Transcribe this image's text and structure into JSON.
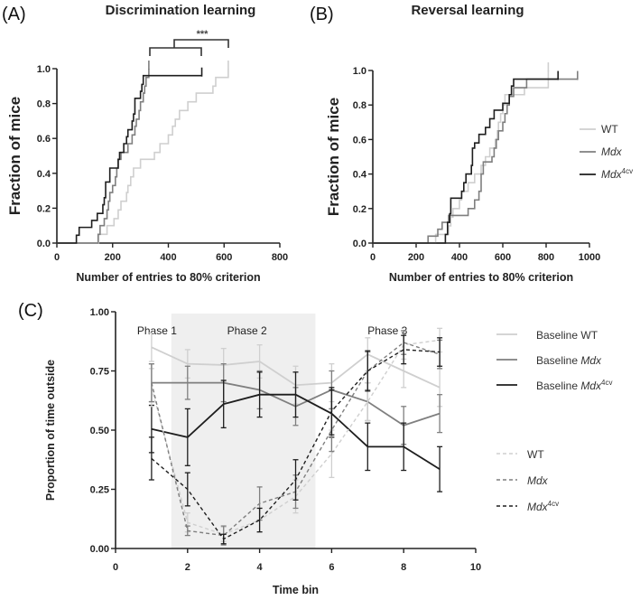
{
  "colors": {
    "WT": "#cfcfcf",
    "Mdx": "#7f7f7f",
    "Mdx4cv": "#1e1e1e",
    "shade": "#efefef"
  },
  "chart_data": [
    {
      "id": "A",
      "panel_label": "(A)",
      "type": "line",
      "title": "Discrimination learning",
      "xlabel": "Number of entries to 80% criterion",
      "ylabel": "Fraction of mice",
      "xlim": [
        0,
        800
      ],
      "ylim": [
        0,
        1
      ],
      "xticks": [
        0,
        200,
        400,
        600,
        800
      ],
      "yticks": [
        "0.0",
        "0.2",
        "0.4",
        "0.6",
        "0.8",
        "1.0"
      ],
      "significance": "***",
      "series": [
        {
          "name": "WT",
          "color_key": "WT",
          "end": 615,
          "steps": [
            [
              150,
              0.05
            ],
            [
              180,
              0.1
            ],
            [
              205,
              0.14
            ],
            [
              220,
              0.19
            ],
            [
              230,
              0.24
            ],
            [
              250,
              0.29
            ],
            [
              255,
              0.33
            ],
            [
              265,
              0.38
            ],
            [
              275,
              0.43
            ],
            [
              300,
              0.48
            ],
            [
              350,
              0.52
            ],
            [
              370,
              0.57
            ],
            [
              400,
              0.62
            ],
            [
              415,
              0.67
            ],
            [
              425,
              0.71
            ],
            [
              440,
              0.76
            ],
            [
              470,
              0.81
            ],
            [
              500,
              0.86
            ],
            [
              560,
              0.9
            ],
            [
              570,
              0.95
            ],
            [
              615,
              1.0
            ]
          ]
        },
        {
          "name": "Mdx",
          "color_key": "Mdx",
          "end": 330,
          "steps": [
            [
              148,
              0.05
            ],
            [
              155,
              0.1
            ],
            [
              170,
              0.14
            ],
            [
              180,
              0.19
            ],
            [
              185,
              0.24
            ],
            [
              190,
              0.29
            ],
            [
              200,
              0.33
            ],
            [
              210,
              0.38
            ],
            [
              215,
              0.43
            ],
            [
              220,
              0.48
            ],
            [
              230,
              0.52
            ],
            [
              255,
              0.57
            ],
            [
              270,
              0.62
            ],
            [
              280,
              0.67
            ],
            [
              285,
              0.71
            ],
            [
              295,
              0.76
            ],
            [
              300,
              0.81
            ],
            [
              310,
              0.86
            ],
            [
              315,
              0.9
            ],
            [
              320,
              0.95
            ],
            [
              330,
              1.0
            ]
          ]
        },
        {
          "name": "Mdx4cv",
          "color_key": "Mdx4cv",
          "end": 520,
          "steps": [
            [
              70,
              0.045
            ],
            [
              80,
              0.09
            ],
            [
              125,
              0.13
            ],
            [
              145,
              0.17
            ],
            [
              165,
              0.22
            ],
            [
              170,
              0.26
            ],
            [
              175,
              0.35
            ],
            [
              190,
              0.43
            ],
            [
              220,
              0.48
            ],
            [
              225,
              0.52
            ],
            [
              240,
              0.57
            ],
            [
              250,
              0.61
            ],
            [
              255,
              0.65
            ],
            [
              270,
              0.7
            ],
            [
              275,
              0.74
            ],
            [
              280,
              0.83
            ],
            [
              300,
              0.87
            ],
            [
              305,
              0.91
            ],
            [
              310,
              0.96
            ]
          ]
        }
      ]
    },
    {
      "id": "B",
      "panel_label": "(B)",
      "type": "line",
      "title": "Reversal learning",
      "xlabel": "Number of entries to 80% criterion",
      "ylabel": "Fraction of mice",
      "xlim": [
        0,
        1000
      ],
      "ylim": [
        0,
        1
      ],
      "xticks": [
        0,
        200,
        400,
        600,
        800,
        1000
      ],
      "yticks": [
        "0.0",
        "0.2",
        "0.4",
        "0.6",
        "0.8",
        "1.0"
      ],
      "legend": [
        {
          "text": "WT",
          "italic": "",
          "sup": "",
          "color_key": "WT"
        },
        {
          "text": "",
          "italic": "Mdx",
          "sup": "",
          "color_key": "Mdx"
        },
        {
          "text": "",
          "italic": "Mdx",
          "sup": "4cv",
          "color_key": "Mdx4cv"
        }
      ],
      "series": [
        {
          "name": "WT",
          "color_key": "WT",
          "end": 810,
          "steps": [
            [
              290,
              0.05
            ],
            [
              350,
              0.1
            ],
            [
              360,
              0.15
            ],
            [
              370,
              0.2
            ],
            [
              400,
              0.25
            ],
            [
              410,
              0.3
            ],
            [
              440,
              0.35
            ],
            [
              470,
              0.4
            ],
            [
              500,
              0.45
            ],
            [
              520,
              0.5
            ],
            [
              540,
              0.55
            ],
            [
              565,
              0.6
            ],
            [
              575,
              0.65
            ],
            [
              580,
              0.7
            ],
            [
              590,
              0.75
            ],
            [
              600,
              0.8
            ],
            [
              610,
              0.86
            ],
            [
              700,
              0.9
            ],
            [
              810,
              1.0
            ]
          ]
        },
        {
          "name": "Mdx",
          "color_key": "Mdx",
          "end": 945,
          "steps": [
            [
              255,
              0.04
            ],
            [
              300,
              0.08
            ],
            [
              320,
              0.12
            ],
            [
              350,
              0.16
            ],
            [
              440,
              0.2
            ],
            [
              470,
              0.25
            ],
            [
              490,
              0.3
            ],
            [
              500,
              0.4
            ],
            [
              510,
              0.47
            ],
            [
              550,
              0.5
            ],
            [
              560,
              0.55
            ],
            [
              570,
              0.6
            ],
            [
              580,
              0.65
            ],
            [
              600,
              0.7
            ],
            [
              610,
              0.75
            ],
            [
              620,
              0.8
            ],
            [
              630,
              0.85
            ],
            [
              650,
              0.9
            ],
            [
              710,
              0.95
            ]
          ]
        },
        {
          "name": "Mdx4cv",
          "color_key": "Mdx4cv",
          "end": 855,
          "steps": [
            [
              335,
              0.05
            ],
            [
              345,
              0.12
            ],
            [
              355,
              0.17
            ],
            [
              360,
              0.26
            ],
            [
              410,
              0.3
            ],
            [
              420,
              0.35
            ],
            [
              430,
              0.4
            ],
            [
              455,
              0.45
            ],
            [
              460,
              0.55
            ],
            [
              470,
              0.58
            ],
            [
              490,
              0.63
            ],
            [
              520,
              0.67
            ],
            [
              540,
              0.72
            ],
            [
              560,
              0.77
            ],
            [
              600,
              0.81
            ],
            [
              630,
              0.86
            ],
            [
              640,
              0.91
            ],
            [
              650,
              0.95
            ]
          ]
        }
      ]
    },
    {
      "id": "C",
      "panel_label": "(C)",
      "type": "line",
      "title": "",
      "xlabel": "Time bin",
      "ylabel": "Proportion of time outside",
      "xlim": [
        0,
        10
      ],
      "ylim": [
        0,
        1
      ],
      "xticks": [
        0,
        2,
        4,
        6,
        8,
        10
      ],
      "yticks": [
        "0.00",
        "0.25",
        "0.50",
        "0.75",
        "1.00"
      ],
      "phases": [
        {
          "label": "Phase 1",
          "x": 1
        },
        {
          "label": "Phase 2",
          "x": 3.5
        },
        {
          "label": "Phase 3",
          "x": 7.4
        }
      ],
      "shaded_x_range": [
        1.55,
        5.55
      ],
      "x": [
        1,
        2,
        3,
        4,
        5,
        6,
        7,
        8,
        9
      ],
      "series": [
        {
          "name": "Baseline WT",
          "legend_text": "Baseline ",
          "legend_italic": "",
          "legend_plain": "WT",
          "legend_sup": "",
          "color_key": "WT",
          "dashed": false,
          "values": [
            0.85,
            0.78,
            0.775,
            0.79,
            0.69,
            0.7,
            0.82,
            0.75,
            0.68
          ],
          "err": [
            0.06,
            0.06,
            0.07,
            0.07,
            0.08,
            0.08,
            0.07,
            0.07,
            0.08
          ]
        },
        {
          "name": "Baseline Mdx",
          "legend_text": "Baseline ",
          "legend_italic": "Mdx",
          "legend_plain": "",
          "legend_sup": "",
          "color_key": "Mdx",
          "dashed": false,
          "values": [
            0.7,
            0.7,
            0.7,
            0.67,
            0.6,
            0.67,
            0.62,
            0.52,
            0.57
          ],
          "err": [
            0.08,
            0.07,
            0.08,
            0.08,
            0.08,
            0.08,
            0.08,
            0.08,
            0.08
          ]
        },
        {
          "name": "Baseline Mdx4cv",
          "legend_text": "Baseline ",
          "legend_italic": "Mdx",
          "legend_plain": "",
          "legend_sup": "4cv",
          "color_key": "Mdx4cv",
          "dashed": false,
          "values": [
            0.505,
            0.47,
            0.61,
            0.65,
            0.65,
            0.57,
            0.43,
            0.43,
            0.335
          ],
          "err": [
            0.1,
            0.12,
            0.1,
            0.095,
            0.095,
            0.1,
            0.1,
            0.1,
            0.095
          ]
        },
        {
          "name": "WT",
          "legend_text": "WT",
          "legend_italic": "",
          "legend_plain": "",
          "legend_sup": "",
          "color_key": "WT",
          "dashed": true,
          "values": [
            0.68,
            0.11,
            0.06,
            0.12,
            0.22,
            0.4,
            0.62,
            0.86,
            0.88
          ],
          "err": [
            0.08,
            0.04,
            0.03,
            0.05,
            0.07,
            0.1,
            0.08,
            0.06,
            0.05
          ]
        },
        {
          "name": "Mdx",
          "legend_text": "",
          "legend_italic": "Mdx",
          "legend_plain": "",
          "legend_sup": "",
          "color_key": "Mdx",
          "dashed": true,
          "values": [
            0.7,
            0.075,
            0.055,
            0.19,
            0.24,
            0.5,
            0.75,
            0.87,
            0.82
          ],
          "err": [
            0.08,
            0.02,
            0.04,
            0.07,
            0.07,
            0.09,
            0.08,
            0.05,
            0.06
          ]
        },
        {
          "name": "Mdx4cv",
          "legend_text": "",
          "legend_italic": "Mdx",
          "legend_plain": "",
          "legend_sup": "4cv",
          "color_key": "Mdx4cv",
          "dashed": true,
          "values": [
            0.38,
            0.25,
            0.04,
            0.12,
            0.29,
            0.58,
            0.75,
            0.84,
            0.83
          ],
          "err": [
            0.09,
            0.07,
            0.02,
            0.05,
            0.085,
            0.1,
            0.085,
            0.06,
            0.06
          ]
        }
      ]
    }
  ]
}
